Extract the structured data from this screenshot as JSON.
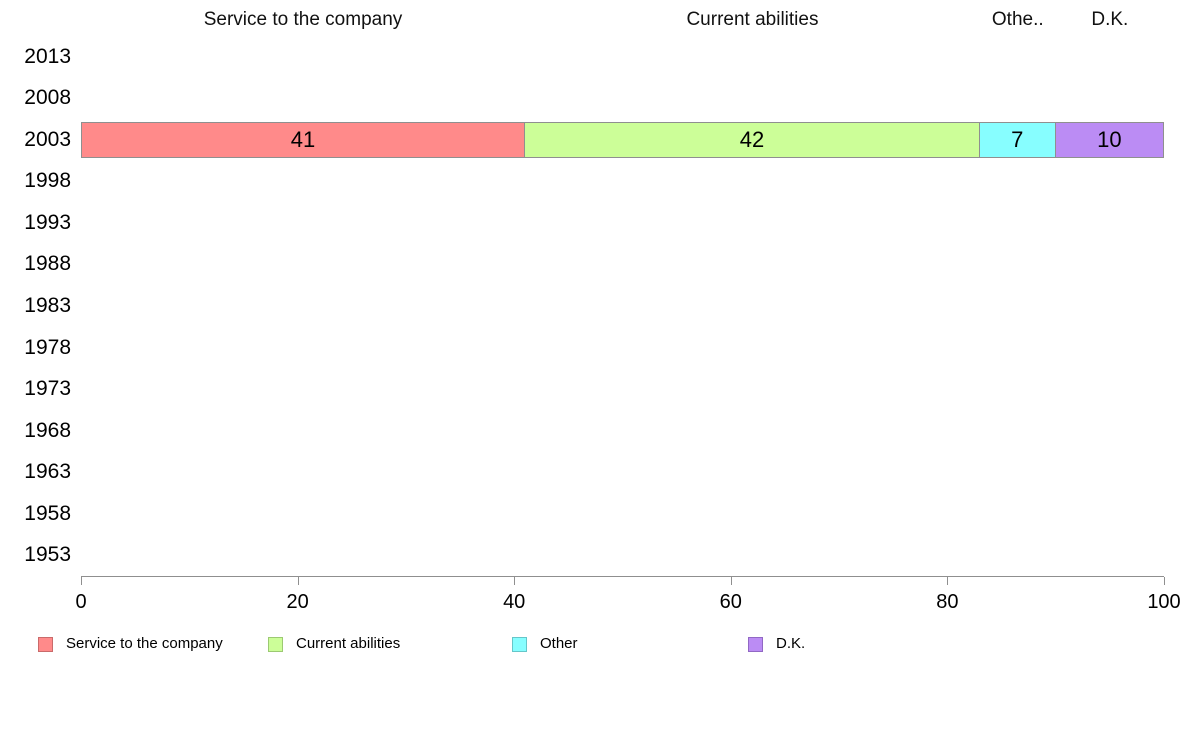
{
  "chart_data": {
    "type": "bar",
    "orientation": "horizontal-stacked",
    "title": "",
    "xlabel": "",
    "ylabel": "",
    "xlim": [
      0,
      100
    ],
    "x_ticks": [
      0,
      20,
      40,
      60,
      80,
      100
    ],
    "x_tick_labels": [
      "0",
      "20",
      "40",
      "60",
      "80",
      "100"
    ],
    "grid": false,
    "legend_position": "bottom",
    "categories": [
      "2013",
      "2008",
      "2003",
      "1998",
      "1993",
      "1988",
      "1983",
      "1978",
      "1973",
      "1968",
      "1963",
      "1958",
      "1953"
    ],
    "series": [
      {
        "name": "Service to the company",
        "header_label": "Service to the company",
        "color": "#ff8a8a",
        "border_color": "#c96a6a",
        "values": [
          null,
          null,
          41,
          null,
          null,
          null,
          null,
          null,
          null,
          null,
          null,
          null,
          null
        ]
      },
      {
        "name": "Current abilities",
        "header_label": "Current abilities",
        "color": "#ccfe98",
        "border_color": "#9cc972",
        "values": [
          null,
          null,
          42,
          null,
          null,
          null,
          null,
          null,
          null,
          null,
          null,
          null,
          null
        ]
      },
      {
        "name": "Other",
        "header_label": "Othe..",
        "color": "#87feff",
        "border_color": "#66c6c9",
        "values": [
          null,
          null,
          7,
          null,
          null,
          null,
          null,
          null,
          null,
          null,
          null,
          null,
          null
        ]
      },
      {
        "name": "D.K.",
        "header_label": "D.K.",
        "color": "#bb8cf4",
        "border_color": "#9168c4",
        "values": [
          null,
          null,
          10,
          null,
          null,
          null,
          null,
          null,
          null,
          null,
          null,
          null,
          null
        ]
      }
    ]
  }
}
